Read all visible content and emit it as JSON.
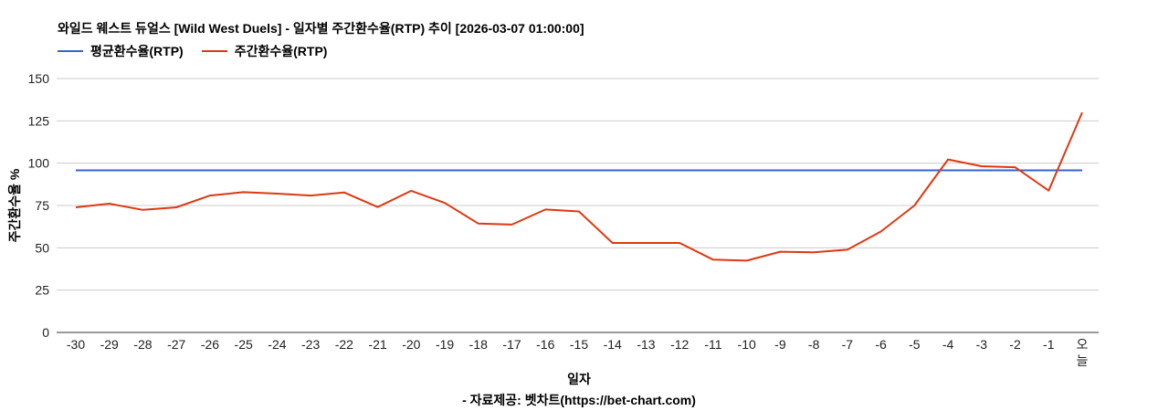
{
  "title": "와일드 웨스트 듀얼스 [Wild West Duels] - 일자별 주간환수율(RTP) 추이 [2026-03-07 01:00:00]",
  "legend": [
    {
      "label": "평균환수율(RTP)",
      "color": "#3366cc"
    },
    {
      "label": "주간환수율(RTP)",
      "color": "#dc3912"
    }
  ],
  "axes": {
    "ylabel": "주간환수율 %",
    "xlabel": "일자"
  },
  "source": "- 자료제공: 벳차트(https://bet-chart.com)",
  "chart_data": {
    "type": "line",
    "title": "와일드 웨스트 듀얼스 [Wild West Duels] - 일자별 주간환수율(RTP) 추이 [2026-03-07 01:00:00]",
    "xlabel": "일자",
    "ylabel": "주간환수율 %",
    "ylim": [
      0,
      150
    ],
    "yticks": [
      0,
      25,
      50,
      75,
      100,
      125,
      150
    ],
    "grid": true,
    "legend_position": "top",
    "categories": [
      "-30",
      "-29",
      "-28",
      "-27",
      "-26",
      "-25",
      "-24",
      "-23",
      "-22",
      "-21",
      "-20",
      "-19",
      "-18",
      "-17",
      "-16",
      "-15",
      "-14",
      "-13",
      "-12",
      "-11",
      "-10",
      "-9",
      "-8",
      "-7",
      "-6",
      "-5",
      "-4",
      "-3",
      "-2",
      "-1",
      "오늘"
    ],
    "series": [
      {
        "name": "평균환수율(RTP)",
        "color": "#3366cc",
        "values": [
          95.8,
          95.8,
          95.8,
          95.8,
          95.8,
          95.8,
          95.8,
          95.8,
          95.8,
          95.8,
          95.8,
          95.8,
          95.8,
          95.8,
          95.8,
          95.8,
          95.8,
          95.8,
          95.8,
          95.8,
          95.8,
          95.8,
          95.8,
          95.8,
          95.8,
          95.8,
          95.8,
          95.8,
          95.8,
          95.8,
          95.8
        ]
      },
      {
        "name": "주간환수율(RTP)",
        "color": "#dc3912",
        "values": [
          73.9,
          76.1,
          72.4,
          73.9,
          80.9,
          82.9,
          82.0,
          80.9,
          82.7,
          74.1,
          83.7,
          76.5,
          64.3,
          63.7,
          72.6,
          71.5,
          52.9,
          52.9,
          52.9,
          43.0,
          42.4,
          47.7,
          47.3,
          48.9,
          59.6,
          75.0,
          102.2,
          98.2,
          97.6,
          83.8,
          130.0
        ]
      }
    ]
  }
}
